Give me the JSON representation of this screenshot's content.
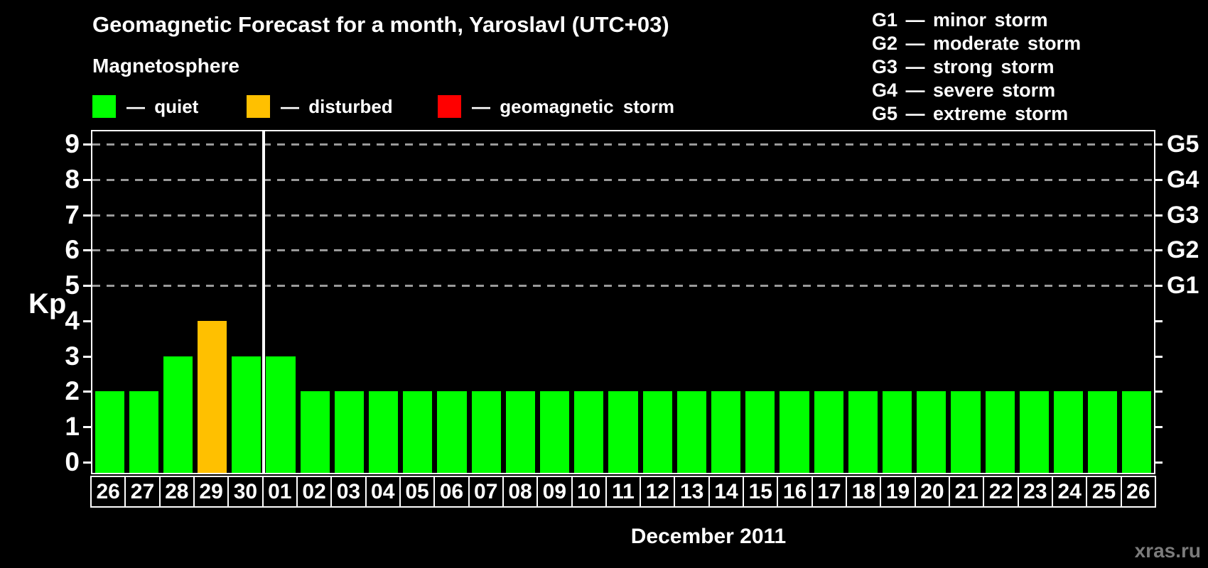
{
  "title": "Geomagnetic Forecast for a month, Yaroslavl (UTC+03)",
  "subtitle": "Magnetosphere",
  "condition_legend": [
    {
      "name": "quiet",
      "label": "— quiet",
      "color": "#00ff00"
    },
    {
      "name": "disturbed",
      "label": "— disturbed",
      "color": "#ffc000"
    },
    {
      "name": "storm",
      "label": "— geomagnetic storm",
      "color": "#ff0000"
    }
  ],
  "storm_scale_legend": [
    "G1 — minor storm",
    "G2 — moderate storm",
    "G3 — strong storm",
    "G4 — severe storm",
    "G5 — extreme storm"
  ],
  "watermark": "xras.ru",
  "chart_data": {
    "type": "bar",
    "title": "Geomagnetic Forecast for a month, Yaroslavl (UTC+03)",
    "ylabel": "Kp",
    "xlabel": "December 2011",
    "ylim": [
      0,
      9
    ],
    "yticks": [
      0,
      1,
      2,
      3,
      4,
      5,
      6,
      7,
      8,
      9
    ],
    "gridlines_at": [
      5,
      6,
      7,
      8,
      9
    ],
    "grid": "dashed horizontal lines at storm levels G1-G5",
    "right_axis": [
      {
        "value": 5,
        "label": "G1"
      },
      {
        "value": 6,
        "label": "G2"
      },
      {
        "value": 7,
        "label": "G3"
      },
      {
        "value": 8,
        "label": "G4"
      },
      {
        "value": 9,
        "label": "G5"
      }
    ],
    "categories": [
      "26",
      "27",
      "28",
      "29",
      "30",
      "01",
      "02",
      "03",
      "04",
      "05",
      "06",
      "07",
      "08",
      "09",
      "10",
      "11",
      "12",
      "13",
      "14",
      "15",
      "16",
      "17",
      "18",
      "19",
      "20",
      "21",
      "22",
      "23",
      "24",
      "25",
      "26"
    ],
    "values": [
      2,
      2,
      3,
      4,
      3,
      3,
      2,
      2,
      2,
      2,
      2,
      2,
      2,
      2,
      2,
      2,
      2,
      2,
      2,
      2,
      2,
      2,
      2,
      2,
      2,
      2,
      2,
      2,
      2,
      2,
      2
    ],
    "statuses": [
      "quiet",
      "quiet",
      "quiet",
      "disturbed",
      "quiet",
      "quiet",
      "quiet",
      "quiet",
      "quiet",
      "quiet",
      "quiet",
      "quiet",
      "quiet",
      "quiet",
      "quiet",
      "quiet",
      "quiet",
      "quiet",
      "quiet",
      "quiet",
      "quiet",
      "quiet",
      "quiet",
      "quiet",
      "quiet",
      "quiet",
      "quiet",
      "quiet",
      "quiet",
      "quiet",
      "quiet"
    ],
    "month_separator_after_index": 4
  }
}
